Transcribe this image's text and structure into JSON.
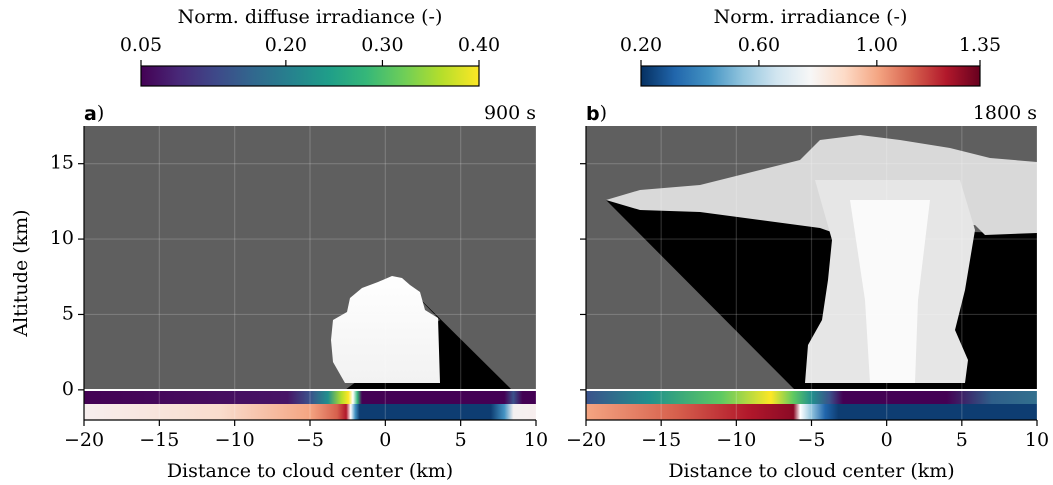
{
  "chart_data": [
    {
      "type": "image",
      "panel_label": "a",
      "panel_label_suffix": ")",
      "time_label": "900 s",
      "xlabel": "Distance to cloud center (km)",
      "ylabel": "Altitude (km)",
      "xlim": [
        -20,
        10
      ],
      "ylim": [
        -2,
        17.5
      ],
      "xticks": [
        {
          "value": -20,
          "label": "−20"
        },
        {
          "value": -15,
          "label": "−15"
        },
        {
          "value": -10,
          "label": "−10"
        },
        {
          "value": -5,
          "label": "−5"
        },
        0,
        5,
        10
      ],
      "yticks": [
        0,
        5,
        10,
        15
      ],
      "show_yticklabels": true,
      "grid": true,
      "colorbar": {
        "label": "Norm. diffuse irradiance (-)",
        "colormap": "viridis",
        "lim": [
          0.05,
          0.4
        ],
        "ticks": [
          0.05,
          {
            "value": 0.2,
            "label": "0.20"
          },
          {
            "value": 0.3,
            "label": "0.30"
          },
          {
            "value": 0.4,
            "label": "0.40"
          }
        ]
      }
    },
    {
      "type": "image",
      "panel_label": "b",
      "panel_label_suffix": ")",
      "time_label": "1800 s",
      "xlabel": "Distance to cloud center (km)",
      "xlim": [
        -20,
        10
      ],
      "ylim": [
        -2,
        17.5
      ],
      "xticks": [
        {
          "value": -20,
          "label": "−20"
        },
        {
          "value": -15,
          "label": "−15"
        },
        {
          "value": -10,
          "label": "−10"
        },
        {
          "value": -5,
          "label": "−5"
        },
        0,
        5,
        10
      ],
      "yticks": [
        0,
        5,
        10,
        15
      ],
      "show_yticklabels": false,
      "grid": true,
      "colorbar": {
        "label": "Norm. irradiance (-)",
        "colormap": "RdBu_r",
        "lim": [
          0.2,
          1.35
        ],
        "ticks": [
          {
            "value": 0.2,
            "label": "0.20"
          },
          {
            "value": 0.6,
            "label": "0.60"
          },
          {
            "value": 1.0,
            "label": "1.00"
          },
          1.35
        ]
      }
    }
  ]
}
